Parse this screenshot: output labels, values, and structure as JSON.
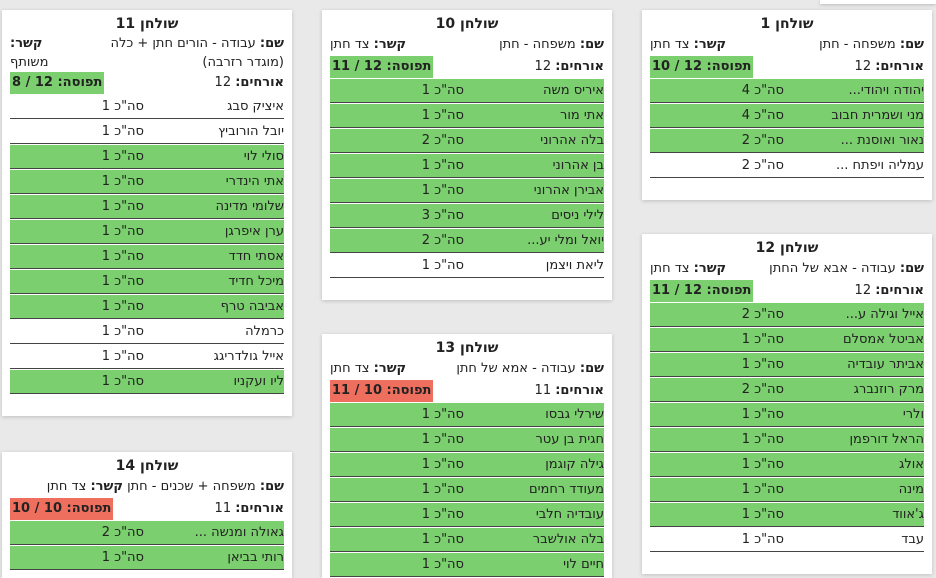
{
  "labels": {
    "name": "שם:",
    "relation": "קשר:",
    "guests": "אורחים:",
    "occupancy": "תפוסה:",
    "count_prefix": "סה\"כ"
  },
  "tables": {
    "t1": {
      "title": "שולחן 1",
      "name": "משפחה - חתן",
      "relation": "צד חתן",
      "guests": "12",
      "occupancy": "12 / 10",
      "rows": [
        {
          "name": "יהודה ויהודי...",
          "count": "4",
          "green": true
        },
        {
          "name": "מני ושמרית חבוב",
          "count": "4",
          "green": true
        },
        {
          "name": "נאור ואוסנת ...",
          "count": "2",
          "green": true
        },
        {
          "name": "עמליה ויפתח ...",
          "count": "2",
          "green": false
        }
      ]
    },
    "t10": {
      "title": "שולחן 10",
      "name": "משפחה - חתן",
      "relation": "צד חתן",
      "guests": "12",
      "occupancy": "12 / 11",
      "rows": [
        {
          "name": "איריס משה",
          "count": "1",
          "green": true
        },
        {
          "name": "אתי מור",
          "count": "1",
          "green": true
        },
        {
          "name": "בלה אהרוני",
          "count": "2",
          "green": true
        },
        {
          "name": "בן אהרוני",
          "count": "1",
          "green": true
        },
        {
          "name": "אבירן אהרוני",
          "count": "1",
          "green": true
        },
        {
          "name": "לילי ניסים",
          "count": "3",
          "green": true
        },
        {
          "name": "יואל ומלי יע...",
          "count": "2",
          "green": true
        },
        {
          "name": "ליאת ויצמן",
          "count": "1",
          "green": false
        }
      ]
    },
    "t11": {
      "title": "שולחן 11",
      "name": "עבודה - הורים חתן + כלה",
      "name_extra": "(מוגדר רזרבה)",
      "relation": "משותף",
      "guests": "12",
      "occupancy": "12 / 8",
      "rows": [
        {
          "name": "איציק סבג",
          "count": "1",
          "green": false
        },
        {
          "name": "יובל הורוביץ",
          "count": "1",
          "green": false
        },
        {
          "name": "סולי לוי",
          "count": "1",
          "green": true
        },
        {
          "name": "אתי הינדרי",
          "count": "1",
          "green": true
        },
        {
          "name": "שלומי מדינה",
          "count": "1",
          "green": true
        },
        {
          "name": "ערן איפרגן",
          "count": "1",
          "green": true
        },
        {
          "name": "אסתי חדד",
          "count": "1",
          "green": true
        },
        {
          "name": "מיכל חדיד",
          "count": "1",
          "green": true
        },
        {
          "name": "אביבה טרף",
          "count": "1",
          "green": true
        },
        {
          "name": "כרמלה",
          "count": "1",
          "green": false
        },
        {
          "name": "אייל גולדריגג",
          "count": "1",
          "green": false
        },
        {
          "name": "ליו ועקניו",
          "count": "1",
          "green": true
        }
      ]
    },
    "t12": {
      "title": "שולחן 12",
      "name": "עבודה - אבא של החתן",
      "relation": "צד חתן",
      "guests": "12",
      "occupancy": "12 / 11",
      "rows": [
        {
          "name": "אייל וגילה ע...",
          "count": "2",
          "green": true
        },
        {
          "name": "אביטל אמסלם",
          "count": "1",
          "green": true
        },
        {
          "name": "אביתר עובדיה",
          "count": "1",
          "green": true
        },
        {
          "name": "מרק רוזנברג",
          "count": "2",
          "green": true
        },
        {
          "name": "ולרי",
          "count": "1",
          "green": true
        },
        {
          "name": "הראל דורפמן",
          "count": "1",
          "green": true
        },
        {
          "name": "אולג",
          "count": "1",
          "green": true
        },
        {
          "name": "מינה",
          "count": "1",
          "green": true
        },
        {
          "name": "ג'אווד",
          "count": "1",
          "green": true
        },
        {
          "name": "עבד",
          "count": "1",
          "green": false
        }
      ]
    },
    "t13": {
      "title": "שולחן 13",
      "name": "עבודה - אמא של חתן",
      "relation": "צד חתן",
      "guests": "11",
      "occupancy": "10 / 11",
      "rows": [
        {
          "name": "שירלי גבסו",
          "count": "1",
          "green": true
        },
        {
          "name": "חגית בן עטר",
          "count": "1",
          "green": true
        },
        {
          "name": "גילה קוגמן",
          "count": "1",
          "green": true
        },
        {
          "name": "מעודד רחמים",
          "count": "1",
          "green": true
        },
        {
          "name": "עובדיה חלבי",
          "count": "1",
          "green": true
        },
        {
          "name": "בלה אולשבר",
          "count": "1",
          "green": true
        },
        {
          "name": "חיים לוי",
          "count": "1",
          "green": true
        }
      ]
    },
    "t14": {
      "title": "שולחן 14",
      "name": "משפחה + שכנים - חתן",
      "relation": "צד חתן",
      "guests": "11",
      "occupancy": "10 / 10",
      "rows": [
        {
          "name": "גאולה ומנשה ...",
          "count": "2",
          "green": true
        },
        {
          "name": "רותי בביאן",
          "count": "1",
          "green": true
        }
      ]
    }
  },
  "colors": {
    "green": "#7bcf6e",
    "red": "#ef6f5f"
  }
}
